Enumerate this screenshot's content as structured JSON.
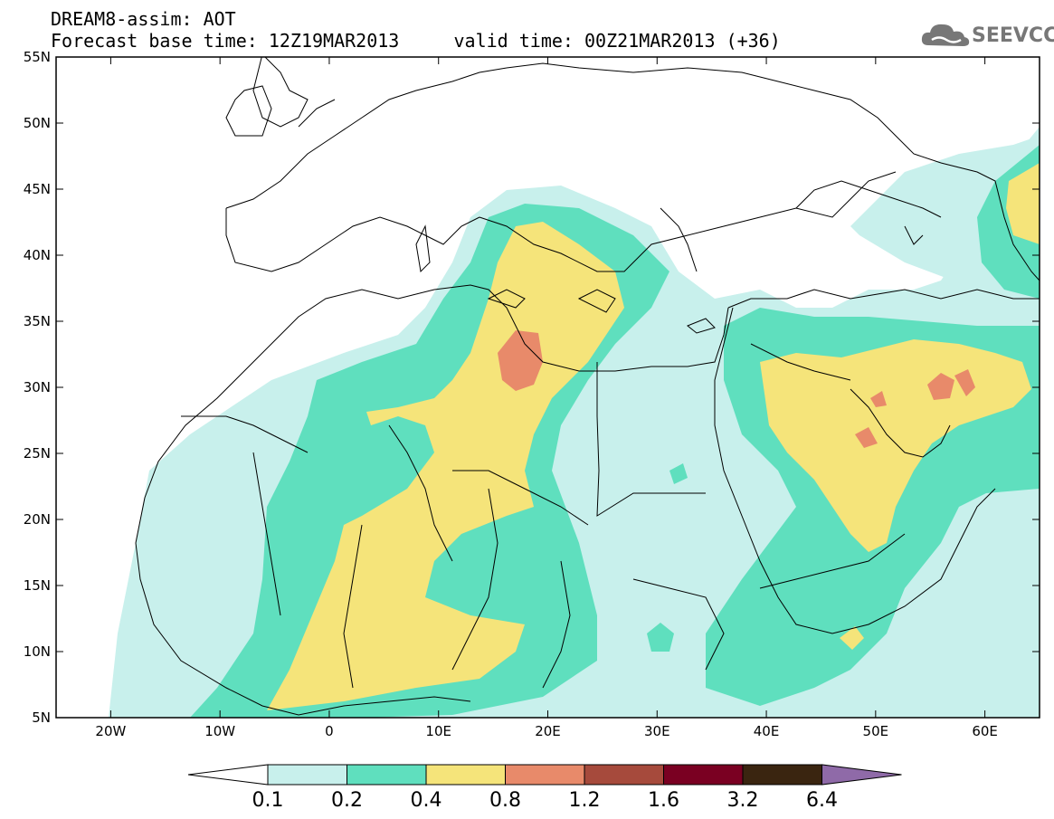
{
  "title": {
    "line1": "DREAM8-assim: AOT",
    "line2": "Forecast base time: 12Z19MAR2013     valid time: 00Z21MAR2013 (+36)"
  },
  "logo": {
    "text": "SEEVCCC",
    "icon": "cloud-icon",
    "color": "#777777"
  },
  "map": {
    "lon_range": [
      -25,
      65
    ],
    "lat_range": [
      5,
      55
    ],
    "lon_ticks": [
      {
        "lon": -20,
        "label": "20W"
      },
      {
        "lon": -10,
        "label": "10W"
      },
      {
        "lon": 0,
        "label": "0"
      },
      {
        "lon": 10,
        "label": "10E"
      },
      {
        "lon": 20,
        "label": "20E"
      },
      {
        "lon": 30,
        "label": "30E"
      },
      {
        "lon": 40,
        "label": "40E"
      },
      {
        "lon": 50,
        "label": "50E"
      },
      {
        "lon": 60,
        "label": "60E"
      }
    ],
    "lat_ticks": [
      {
        "lat": 55,
        "label": "55N"
      },
      {
        "lat": 50,
        "label": "50N"
      },
      {
        "lat": 45,
        "label": "45N"
      },
      {
        "lat": 40,
        "label": "40N"
      },
      {
        "lat": 35,
        "label": "35N"
      },
      {
        "lat": 30,
        "label": "30N"
      },
      {
        "lat": 25,
        "label": "25N"
      },
      {
        "lat": 20,
        "label": "20N"
      },
      {
        "lat": 15,
        "label": "15N"
      },
      {
        "lat": 10,
        "label": "10N"
      },
      {
        "lat": 5,
        "label": "5N"
      }
    ],
    "colors": {
      "c01": "#c8f0ec",
      "c02": "#5fdfbe",
      "c04": "#f5e47a",
      "c08": "#e88a6a",
      "border": "#000000"
    }
  },
  "colorbar": {
    "labels": [
      "0.1",
      "0.2",
      "0.4",
      "0.8",
      "1.2",
      "1.6",
      "3.2",
      "6.4"
    ],
    "colors": [
      "#c8f0ec",
      "#5fdfbe",
      "#f5e47a",
      "#e88a6a",
      "#a64a3c",
      "#7a0022",
      "#3a2510"
    ],
    "low_color": "#ffffff",
    "high_color": "#8f6aa8"
  }
}
